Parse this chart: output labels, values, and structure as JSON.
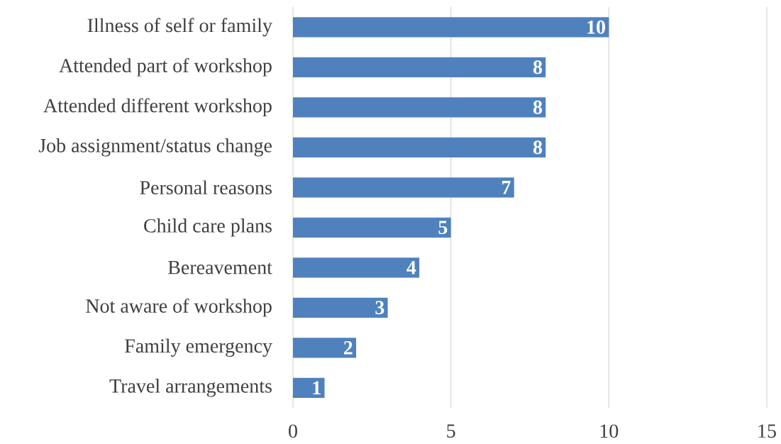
{
  "chart_data": {
    "type": "bar",
    "orientation": "horizontal",
    "categories": [
      "Illness of self or family",
      "Attended part of workshop",
      "Attended different workshop",
      "Job assignment/status change",
      "Personal reasons",
      "Child care plans",
      "Bereavement",
      "Not aware of workshop",
      "Family emergency",
      "Travel arrangements"
    ],
    "values": [
      10,
      8,
      8,
      8,
      7,
      5,
      4,
      3,
      2,
      1
    ],
    "color": "#4f81bd",
    "xlim": [
      0,
      15
    ],
    "xticks": [
      0,
      5,
      10,
      15
    ],
    "grid": "x",
    "data_labels": true
  }
}
